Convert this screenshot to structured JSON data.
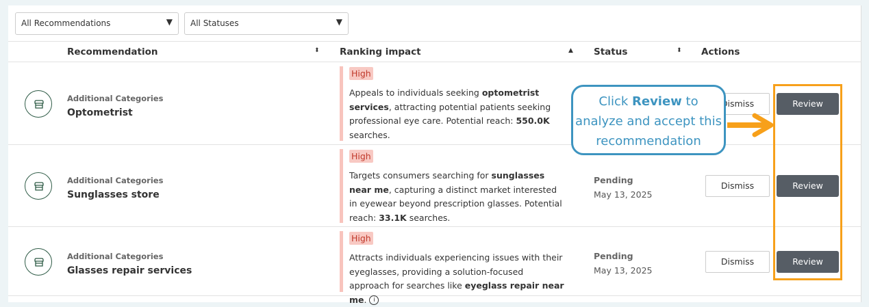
{
  "filters": {
    "recommendation": "All Recommendations",
    "status": "All Statuses"
  },
  "columns": {
    "recommendation": "Recommendation",
    "impact": "Ranking impact",
    "status": "Status",
    "actions": "Actions"
  },
  "rows": [
    {
      "category": "Additional Categories",
      "name": "Optometrist",
      "impact": "High",
      "desc": [
        "Appeals to individuals seeking ",
        "optometrist services",
        ", attracting potential patients seeking professional eye care. Potential reach: ",
        "550.0K",
        " searches."
      ],
      "status": "",
      "date": "",
      "dismiss": "Dismiss",
      "review": "Review"
    },
    {
      "category": "Additional Categories",
      "name": "Sunglasses store",
      "impact": "High",
      "desc": [
        "Targets consumers searching for ",
        "sunglasses near me",
        ", capturing a distinct market interested in eyewear beyond prescription glasses. Potential reach: ",
        "33.1K",
        " searches."
      ],
      "status": "Pending",
      "date": "May 13, 2025",
      "dismiss": "Dismiss",
      "review": "Review"
    },
    {
      "category": "Additional Categories",
      "name": "Glasses repair services",
      "impact": "High",
      "desc": [
        "Attracts individuals experiencing issues with their eyeglasses, providing a solution-focused approach for searches like ",
        "eyeglass repair near me",
        "."
      ],
      "status": "Pending",
      "date": "May 13, 2025",
      "dismiss": "Dismiss",
      "review": "Review"
    }
  ],
  "callout": {
    "pre": "Click ",
    "bold": "Review",
    "post": " to analyze and accept this recommendation"
  },
  "colors": {
    "accent_orange": "#f7a01a",
    "callout_blue": "#3d94c0",
    "review_button": "#565d65",
    "impact_high": "#f8c9c3"
  }
}
